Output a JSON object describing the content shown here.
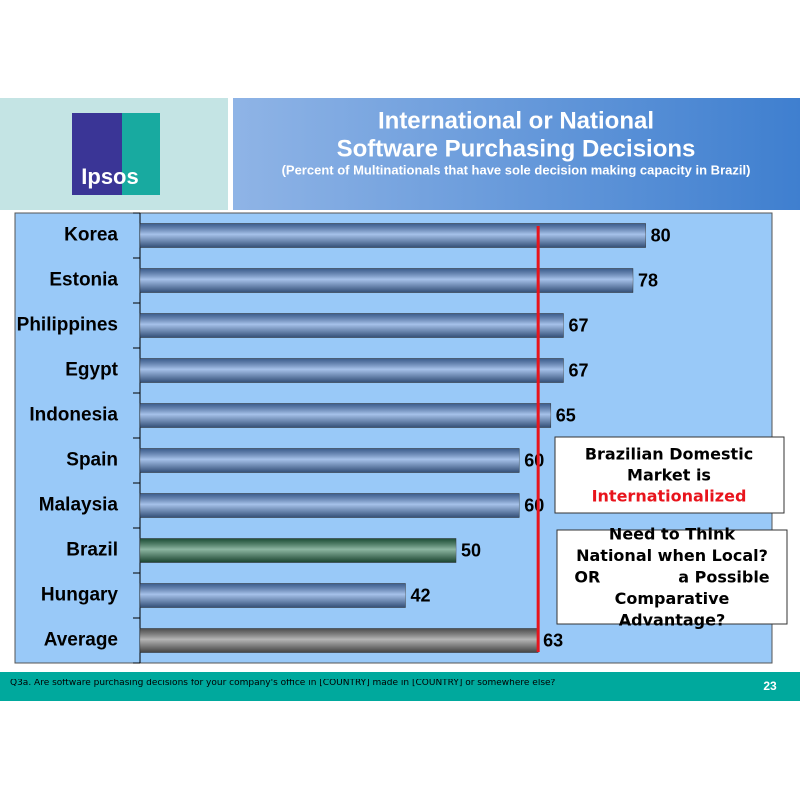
{
  "logo": "Ipsos",
  "chart_data": {
    "type": "bar",
    "orientation": "horizontal",
    "title": [
      "International or National",
      "Software Purchasing Decisions"
    ],
    "subtitle": "(Percent of Multinationals that have sole decision making capacity in Brazil)",
    "categories": [
      "Korea",
      "Estonia",
      "Philippines",
      "Egypt",
      "Indonesia",
      "Spain",
      "Malaysia",
      "Brazil",
      "Hungary",
      "Average"
    ],
    "values": [
      80,
      78,
      67,
      67,
      65,
      60,
      60,
      50,
      42,
      63
    ],
    "colors": [
      "#5d8fd8",
      "#5d8fd8",
      "#5d8fd8",
      "#5d8fd8",
      "#5d8fd8",
      "#5d8fd8",
      "#5d8fd8",
      "#2f7a55",
      "#5d8fd8",
      "#7a7a7a"
    ],
    "xlim": [
      0,
      100
    ],
    "reference_line_color": "#e8141c"
  },
  "callouts": [
    {
      "lines": [
        "Brazilian Domestic",
        "Market is",
        "Internationalized"
      ]
    },
    {
      "lines": [
        "Need to Think",
        "National when Local?",
        "OR              a Possible",
        "Comparative",
        "Advantage?"
      ]
    }
  ],
  "footer": {
    "note": "Q3a. Are software purchasing decisions for your company's office in [COUNTRY] made in [COUNTRY] or somewhere else?",
    "page": "23"
  }
}
